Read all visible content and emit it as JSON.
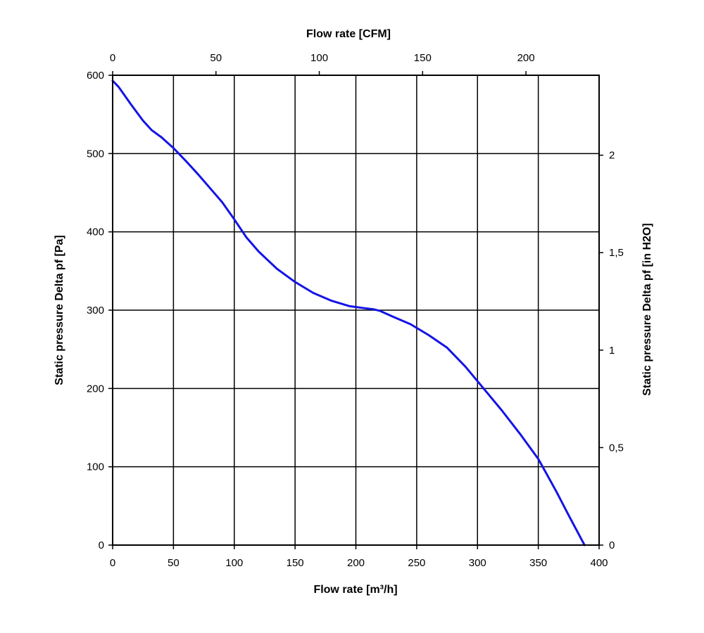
{
  "chart_data": {
    "type": "line",
    "x_bottom": {
      "label": "Flow rate [m³/h]",
      "range": [
        0,
        400
      ],
      "ticks": [
        0,
        50,
        100,
        150,
        200,
        250,
        300,
        350,
        400
      ],
      "tick_labels": [
        "0",
        "50",
        "100",
        "150",
        "200",
        "250",
        "300",
        "350",
        "400"
      ]
    },
    "x_top": {
      "label": "Flow rate [CFM]",
      "range": [
        0,
        235.4
      ],
      "ticks": [
        0,
        50,
        100,
        150,
        200
      ],
      "tick_labels": [
        "0",
        "50",
        "100",
        "150",
        "200"
      ]
    },
    "y_left": {
      "label": "Static pressure Delta pf [Pa]",
      "range": [
        0,
        600
      ],
      "ticks": [
        0,
        100,
        200,
        300,
        400,
        500,
        600
      ],
      "tick_labels": [
        "0",
        "100",
        "200",
        "300",
        "400",
        "500",
        "600"
      ]
    },
    "y_right": {
      "label": "Static pressure Delta pf [in H2O]",
      "range": [
        0,
        2.41
      ],
      "ticks": [
        0,
        0.5,
        1,
        1.5,
        2
      ],
      "tick_labels": [
        "0",
        "0,5",
        "1",
        "1,5",
        "2"
      ]
    },
    "grid": true,
    "series": [
      {
        "color": "#1414e6",
        "x": [
          0,
          5,
          15,
          25,
          32,
          40,
          50,
          60,
          70,
          80,
          90,
          100,
          110,
          120,
          135,
          150,
          165,
          180,
          195,
          205,
          215,
          220,
          230,
          245,
          260,
          275,
          290,
          305,
          320,
          335,
          350,
          355,
          365,
          375,
          388
        ],
        "y": [
          593,
          585,
          563,
          542,
          530,
          521,
          507,
          491,
          474,
          456,
          438,
          416,
          393,
          375,
          353,
          336,
          322,
          312,
          305,
          303,
          301,
          299,
          292,
          282,
          268,
          252,
          228,
          200,
          172,
          142,
          110,
          96,
          68,
          38,
          0
        ]
      }
    ]
  },
  "colors": {
    "line": "#1414e6",
    "grid": "#000000",
    "background": "#ffffff"
  }
}
